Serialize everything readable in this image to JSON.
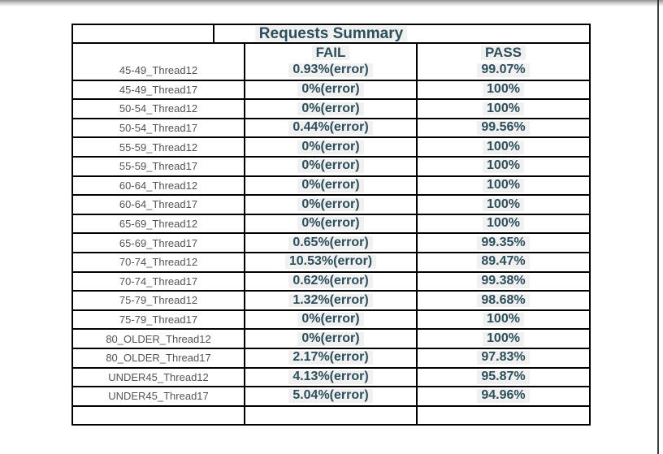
{
  "page": {
    "background_color": "#ffffff",
    "right_edge_line_color": "#3a3a3a",
    "top_shadow_color": "#8f8f8f"
  },
  "table": {
    "title": "Requests Summary",
    "columns": [
      "FAIL",
      "PASS"
    ],
    "accent_text_color": "#2d4f5c",
    "label_text_color": "#515456",
    "value_highlight_color": "#f1f1f1",
    "border_color": "#000000",
    "rows": [
      {
        "label": "45-49_Thread12",
        "fail": "0.93%(error)",
        "pass": "99.07%"
      },
      {
        "label": "45-49_Thread17",
        "fail": "0%(error)",
        "pass": "100%"
      },
      {
        "label": "50-54_Thread12",
        "fail": "0%(error)",
        "pass": "100%"
      },
      {
        "label": "50-54_Thread17",
        "fail": "0.44%(error)",
        "pass": "99.56%"
      },
      {
        "label": "55-59_Thread12",
        "fail": "0%(error)",
        "pass": "100%"
      },
      {
        "label": "55-59_Thread17",
        "fail": "0%(error)",
        "pass": "100%"
      },
      {
        "label": "60-64_Thread12",
        "fail": "0%(error)",
        "pass": "100%"
      },
      {
        "label": "60-64_Thread17",
        "fail": "0%(error)",
        "pass": "100%"
      },
      {
        "label": "65-69_Thread12",
        "fail": "0%(error)",
        "pass": "100%"
      },
      {
        "label": "65-69_Thread17",
        "fail": "0.65%(error)",
        "pass": "99.35%"
      },
      {
        "label": "70-74_Thread12",
        "fail": "10.53%(error)",
        "pass": "89.47%"
      },
      {
        "label": "70-74_Thread17",
        "fail": "0.62%(error)",
        "pass": "99.38%"
      },
      {
        "label": "75-79_Thread12",
        "fail": "1.32%(error)",
        "pass": "98.68%"
      },
      {
        "label": "75-79_Thread17",
        "fail": "0%(error)",
        "pass": "100%"
      },
      {
        "label": "80_OLDER_Thread12",
        "fail": "0%(error)",
        "pass": "100%"
      },
      {
        "label": "80_OLDER_Thread17",
        "fail": "2.17%(error)",
        "pass": "97.83%"
      },
      {
        "label": "UNDER45_Thread12",
        "fail": "4.13%(error)",
        "pass": "95.87%"
      },
      {
        "label": "UNDER45_Thread17",
        "fail": "5.04%(error)",
        "pass": "94.96%"
      },
      {
        "label": "",
        "fail": "",
        "pass": ""
      }
    ]
  },
  "chart_data": {
    "type": "table",
    "title": "Requests Summary",
    "columns": [
      "",
      "FAIL",
      "PASS"
    ],
    "rows": [
      [
        "45-49_Thread12",
        "0.93%(error)",
        "99.07%"
      ],
      [
        "45-49_Thread17",
        "0%(error)",
        "100%"
      ],
      [
        "50-54_Thread12",
        "0%(error)",
        "100%"
      ],
      [
        "50-54_Thread17",
        "0.44%(error)",
        "99.56%"
      ],
      [
        "55-59_Thread12",
        "0%(error)",
        "100%"
      ],
      [
        "55-59_Thread17",
        "0%(error)",
        "100%"
      ],
      [
        "60-64_Thread12",
        "0%(error)",
        "100%"
      ],
      [
        "60-64_Thread17",
        "0%(error)",
        "100%"
      ],
      [
        "65-69_Thread12",
        "0%(error)",
        "100%"
      ],
      [
        "65-69_Thread17",
        "0.65%(error)",
        "99.35%"
      ],
      [
        "70-74_Thread12",
        "10.53%(error)",
        "89.47%"
      ],
      [
        "70-74_Thread17",
        "0.62%(error)",
        "99.38%"
      ],
      [
        "75-79_Thread12",
        "1.32%(error)",
        "98.68%"
      ],
      [
        "75-79_Thread17",
        "0%(error)",
        "100%"
      ],
      [
        "80_OLDER_Thread12",
        "0%(error)",
        "100%"
      ],
      [
        "80_OLDER_Thread17",
        "2.17%(error)",
        "97.83%"
      ],
      [
        "UNDER45_Thread12",
        "4.13%(error)",
        "95.87%"
      ],
      [
        "UNDER45_Thread17",
        "5.04%(error)",
        "94.96%"
      ]
    ]
  }
}
